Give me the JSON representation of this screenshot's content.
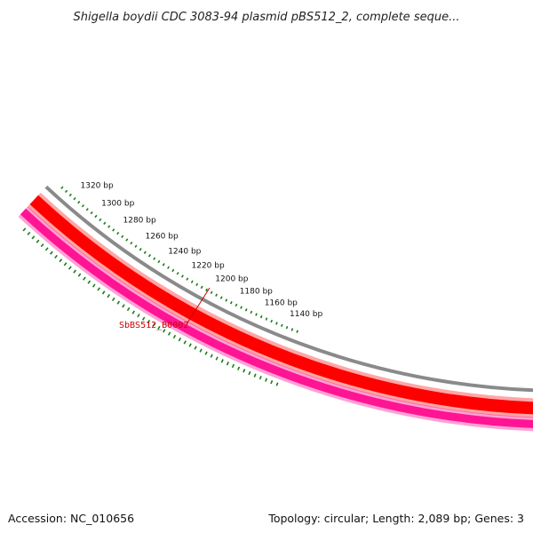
{
  "title": "Shigella boydii CDC 3083-94 plasmid pBS512_2, complete seque...",
  "footer": {
    "accession": "Accession: NC_010656",
    "summary": "Topology: circular; Length: 2,089 bp; Genes: 3"
  },
  "ticks": [
    {
      "bp": 1320,
      "label": "1320 bp"
    },
    {
      "bp": 1300,
      "label": "1300 bp"
    },
    {
      "bp": 1280,
      "label": "1280 bp"
    },
    {
      "bp": 1260,
      "label": "1260 bp"
    },
    {
      "bp": 1240,
      "label": "1240 bp"
    },
    {
      "bp": 1220,
      "label": "1220 bp"
    },
    {
      "bp": 1200,
      "label": "1200 bp"
    },
    {
      "bp": 1180,
      "label": "1180 bp"
    },
    {
      "bp": 1160,
      "label": "1160 bp"
    },
    {
      "bp": 1140,
      "label": "1140 bp"
    }
  ],
  "gene": {
    "label": "SbBS512_B0002"
  },
  "colors": {
    "backbone": "#8a8a8a",
    "gene_forward": "#ff0000",
    "gene_reverse": "#ff1493",
    "tick": "#1a7a1a",
    "gene_label": "#cc0000"
  }
}
